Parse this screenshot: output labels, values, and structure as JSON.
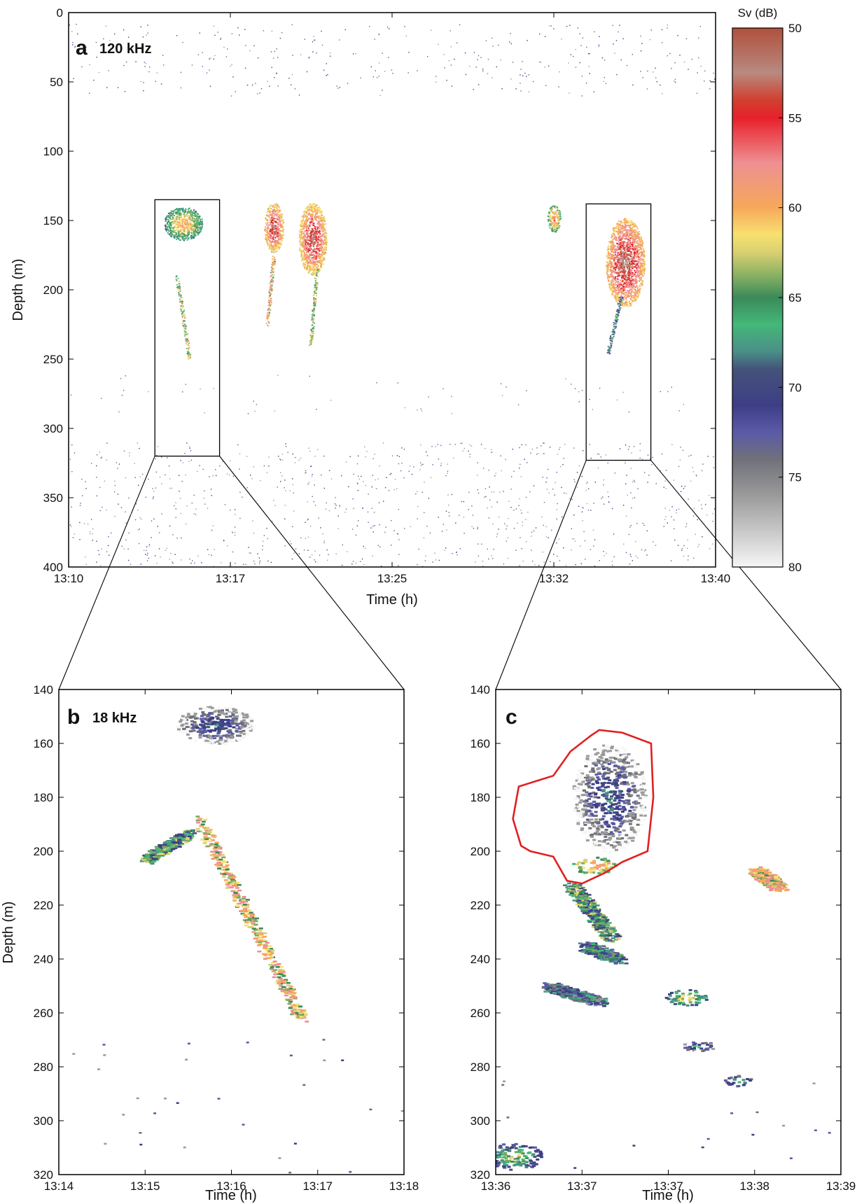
{
  "colorbar": {
    "label": "Sv (dB)",
    "ticks": [
      50,
      55,
      60,
      65,
      70,
      75,
      80
    ],
    "range": [
      50,
      80
    ],
    "stops": [
      {
        "v": 50,
        "c": "#b0503c"
      },
      {
        "v": 52.5,
        "c": "#b88a80"
      },
      {
        "v": 54,
        "c": "#d04030"
      },
      {
        "v": 55,
        "c": "#e8202a"
      },
      {
        "v": 57.5,
        "c": "#ee8f92"
      },
      {
        "v": 60,
        "c": "#f6a85a"
      },
      {
        "v": 61.5,
        "c": "#f8e070"
      },
      {
        "v": 62.5,
        "c": "#d8d070"
      },
      {
        "v": 64,
        "c": "#7aaa60"
      },
      {
        "v": 65,
        "c": "#3a8a5a"
      },
      {
        "v": 66.5,
        "c": "#44b878"
      },
      {
        "v": 68,
        "c": "#4a8f88"
      },
      {
        "v": 69,
        "c": "#44527a"
      },
      {
        "v": 71,
        "c": "#3e3e86"
      },
      {
        "v": 72.5,
        "c": "#5a5aa8"
      },
      {
        "v": 74,
        "c": "#70707a"
      },
      {
        "v": 76,
        "c": "#9a9a9a"
      },
      {
        "v": 80,
        "c": "#f6f6f6"
      }
    ]
  },
  "chart_data": [
    {
      "id": "a",
      "type": "heatmap",
      "panel_letter": "a",
      "frequency_label": "120 kHz",
      "xlabel": "Time (h)",
      "ylabel": "Depth (m)",
      "x_tick_labels": [
        "13:10",
        "13:17",
        "13:25",
        "13:32",
        "13:40"
      ],
      "xlim_minutes": [
        0,
        30
      ],
      "ylim": [
        0,
        400
      ],
      "y_ticks": [
        0,
        50,
        100,
        150,
        200,
        250,
        300,
        350,
        400
      ],
      "zoom_boxes": [
        {
          "target": "b",
          "x_min": 4,
          "x_max": 7,
          "depth_min": 135,
          "depth_max": 320
        },
        {
          "target": "c",
          "x_min": 24,
          "x_max": 27,
          "depth_min": 138,
          "depth_max": 323
        }
      ],
      "schools": [
        {
          "x": 5.3,
          "depth": 152,
          "rx": 0.9,
          "rdepth": 12,
          "sv": 62
        },
        {
          "x": 9.5,
          "depth": 155,
          "rx": 0.45,
          "rdepth": 18,
          "sv": 56
        },
        {
          "x": 11.3,
          "depth": 163,
          "rx": 0.65,
          "rdepth": 26,
          "sv": 56
        },
        {
          "x": 22.5,
          "depth": 148,
          "rx": 0.3,
          "rdepth": 10,
          "sv": 60
        },
        {
          "x": 25.8,
          "depth": 180,
          "rx": 0.9,
          "rdepth": 32,
          "sv": 55
        }
      ],
      "trails": [
        {
          "x1": 5.0,
          "d1": 190,
          "x2": 5.6,
          "d2": 250,
          "sv": 62
        },
        {
          "x1": 9.5,
          "d1": 175,
          "x2": 9.2,
          "d2": 225,
          "sv": 60
        },
        {
          "x1": 11.5,
          "d1": 185,
          "x2": 11.2,
          "d2": 240,
          "sv": 63
        },
        {
          "x1": 25.6,
          "d1": 205,
          "x2": 25.0,
          "d2": 245,
          "sv": 68
        }
      ],
      "layers": [
        {
          "depth_from": 8,
          "depth_to": 60,
          "density": 0.35,
          "sv": 72
        },
        {
          "depth_from": 260,
          "depth_to": 290,
          "density": 0.12,
          "sv": 74
        },
        {
          "depth_from": 310,
          "depth_to": 400,
          "density": 0.55,
          "sv": 73
        }
      ]
    },
    {
      "id": "b",
      "type": "heatmap",
      "panel_letter": "b",
      "frequency_label": "18 kHz",
      "xlabel": "Time (h)",
      "ylabel": "Depth (m)",
      "x_tick_labels": [
        "13:14",
        "13:15",
        "13:16",
        "13:17",
        "13:18"
      ],
      "xlim_minutes": [
        0,
        4
      ],
      "ylim": [
        140,
        320
      ],
      "y_ticks": [
        140,
        160,
        180,
        200,
        220,
        240,
        260,
        280,
        300,
        320
      ],
      "schools": [
        {
          "x": 1.8,
          "depth": 153,
          "rx": 0.45,
          "rdepth": 7,
          "sv": 72
        }
      ],
      "trails": [
        {
          "x1": 1.6,
          "d1": 188,
          "x2": 2.8,
          "d2": 262,
          "sv": 60
        },
        {
          "x1": 1.5,
          "d1": 193,
          "x2": 1.0,
          "d2": 203,
          "sv": 66
        }
      ],
      "layers": [
        {
          "depth_from": 268,
          "depth_to": 320,
          "density": 0.1,
          "sv": 73
        }
      ]
    },
    {
      "id": "c",
      "type": "heatmap",
      "panel_letter": "c",
      "frequency_label": "",
      "xlabel": "Time (h)",
      "ylabel": "",
      "x_tick_labels": [
        "13:36",
        "13:37",
        "13:37",
        "13:38",
        "13:39"
      ],
      "xlim_minutes": [
        0,
        3
      ],
      "ylim": [
        140,
        320
      ],
      "y_ticks": [
        140,
        160,
        180,
        200,
        220,
        240,
        260,
        280,
        300,
        320
      ],
      "outlined_region": [
        [
          0.83,
          157
        ],
        [
          0.65,
          163
        ],
        [
          0.5,
          172
        ],
        [
          0.2,
          176
        ],
        [
          0.15,
          188
        ],
        [
          0.22,
          198
        ],
        [
          0.3,
          200
        ],
        [
          0.5,
          202
        ],
        [
          0.62,
          211
        ],
        [
          0.75,
          212
        ],
        [
          0.95,
          208
        ],
        [
          1.1,
          204
        ],
        [
          1.32,
          200
        ],
        [
          1.37,
          180
        ],
        [
          1.35,
          160
        ],
        [
          1.1,
          156
        ],
        [
          0.9,
          155
        ]
      ],
      "schools": [
        {
          "x": 0.98,
          "depth": 180,
          "rx": 0.32,
          "rdepth": 20,
          "sv": 72
        },
        {
          "x": 0.85,
          "depth": 205,
          "rx": 0.2,
          "rdepth": 3,
          "sv": 60
        },
        {
          "x": 1.65,
          "depth": 254,
          "rx": 0.18,
          "rdepth": 3,
          "sv": 64
        },
        {
          "x": 1.75,
          "depth": 272,
          "rx": 0.15,
          "rdepth": 2,
          "sv": 70
        },
        {
          "x": 2.1,
          "depth": 285,
          "rx": 0.12,
          "rdepth": 2,
          "sv": 68
        },
        {
          "x": 0.15,
          "depth": 313,
          "rx": 0.25,
          "rdepth": 5,
          "sv": 66
        }
      ],
      "trails": [
        {
          "x1": 0.65,
          "d1": 213,
          "x2": 1.0,
          "d2": 232,
          "sv": 66
        },
        {
          "x1": 0.78,
          "d1": 235,
          "x2": 1.05,
          "d2": 240,
          "sv": 68
        },
        {
          "x1": 0.45,
          "d1": 250,
          "x2": 0.9,
          "d2": 256,
          "sv": 70
        },
        {
          "x1": 2.25,
          "d1": 207,
          "x2": 2.45,
          "d2": 213,
          "sv": 60
        }
      ],
      "layers": [
        {
          "depth_from": 285,
          "depth_to": 320,
          "density": 0.12,
          "sv": 73
        }
      ]
    }
  ]
}
